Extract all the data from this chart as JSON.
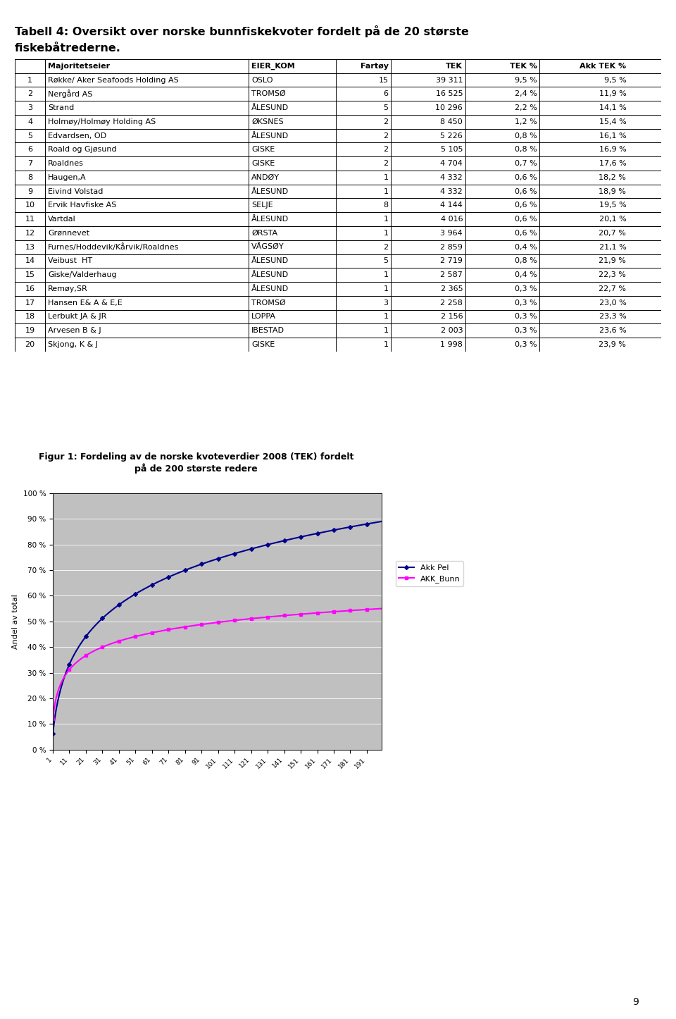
{
  "title_line1": "Tabell 4: Oversikt over norske bunnfiskekvoter fordelt på de 20 største",
  "title_line2": "fiskebåtrederne.",
  "col_headers": [
    "",
    "Majoritetseier",
    "EIER_KOM",
    "Fartøy",
    "TEK",
    "TEK %",
    "Akk TEK %"
  ],
  "rows": [
    [
      "1",
      "Røkke/ Aker Seafoods Holding AS",
      "OSLO",
      "15",
      "39 311",
      "9,5 %",
      "9,5 %"
    ],
    [
      "2",
      "Nergård AS",
      "TROMSØ",
      "6",
      "16 525",
      "2,4 %",
      "11,9 %"
    ],
    [
      "3",
      "Strand",
      "ÅLESUND",
      "5",
      "10 296",
      "2,2 %",
      "14,1 %"
    ],
    [
      "4",
      "Holmøy/Holmøy Holding AS",
      "ØKSNES",
      "2",
      "8 450",
      "1,2 %",
      "15,4 %"
    ],
    [
      "5",
      "Edvardsen, OD",
      "ÅLESUND",
      "2",
      "5 226",
      "0,8 %",
      "16,1 %"
    ],
    [
      "6",
      "Roald og Gjøsund",
      "GISKE",
      "2",
      "5 105",
      "0,8 %",
      "16,9 %"
    ],
    [
      "7",
      "Roaldnes",
      "GISKE",
      "2",
      "4 704",
      "0,7 %",
      "17,6 %"
    ],
    [
      "8",
      "Haugen,A",
      "ANDØY",
      "1",
      "4 332",
      "0,6 %",
      "18,2 %"
    ],
    [
      "9",
      "Eivind Volstad",
      "ÅLESUND",
      "1",
      "4 332",
      "0,6 %",
      "18,9 %"
    ],
    [
      "10",
      "Ervik Havfiske AS",
      "SELJE",
      "8",
      "4 144",
      "0,6 %",
      "19,5 %"
    ],
    [
      "11",
      "Vartdal",
      "ÅLESUND",
      "1",
      "4 016",
      "0,6 %",
      "20,1 %"
    ],
    [
      "12",
      "Grønnevet",
      "ØRSTA",
      "1",
      "3 964",
      "0,6 %",
      "20,7 %"
    ],
    [
      "13",
      "Furnes/Hoddevik/Kårvik/Roaldnes",
      "VÅGSØY",
      "2",
      "2 859",
      "0,4 %",
      "21,1 %"
    ],
    [
      "14",
      "Veibust  HT",
      "ÅLESUND",
      "5",
      "2 719",
      "0,8 %",
      "21,9 %"
    ],
    [
      "15",
      "Giske/Valderhaug",
      "ÅLESUND",
      "1",
      "2 587",
      "0,4 %",
      "22,3 %"
    ],
    [
      "16",
      "Remøy,SR",
      "ÅLESUND",
      "1",
      "2 365",
      "0,3 %",
      "22,7 %"
    ],
    [
      "17",
      "Hansen E& A & E,E",
      "TROMSØ",
      "3",
      "2 258",
      "0,3 %",
      "23,0 %"
    ],
    [
      "18",
      "Lerbukt JA & JR",
      "LOPPA",
      "1",
      "2 156",
      "0,3 %",
      "23,3 %"
    ],
    [
      "19",
      "Arvesen B & J",
      "IBESTAD",
      "1",
      "2 003",
      "0,3 %",
      "23,6 %"
    ],
    [
      "20",
      "Skjong, K & J",
      "GISKE",
      "1",
      "1 998",
      "0,3 %",
      "23,9 %"
    ]
  ],
  "chart_title_line1": "Figur 1: Fordeling av de norske kvoteverdier 2008 (TEK) fordelt",
  "chart_title_line2": "på de 200 største redere",
  "chart_ylabel": "Andel av total",
  "legend_labels": [
    "Akk Pel",
    "AKK_Bunn"
  ],
  "line1_color": "#00008B",
  "line2_color": "#FF00FF",
  "page_number": "9",
  "chart_bg": "#C0C0C0"
}
